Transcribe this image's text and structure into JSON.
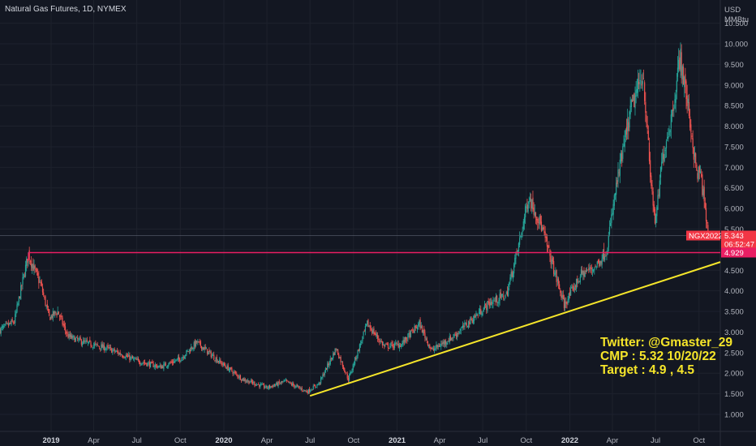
{
  "chart_data": {
    "type": "candlestick",
    "title": "Natural Gas Futures, 1D, NYMEX",
    "currency": "USD",
    "unit": "MMBtu",
    "grid": true,
    "y_axis": {
      "position": "right",
      "ylim": [
        0.6,
        10.85
      ],
      "ticks": [
        "1.000",
        "1.500",
        "2.000",
        "2.500",
        "3.000",
        "3.500",
        "4.000",
        "4.500",
        "5.000",
        "5.500",
        "6.000",
        "6.500",
        "7.000",
        "7.500",
        "8.000",
        "8.500",
        "9.000",
        "9.500",
        "10.000",
        "10.500"
      ]
    },
    "x_axis": {
      "range": [
        "2018-09-15",
        "2022-11-15"
      ],
      "ticks": [
        {
          "label": "2019",
          "date": "2019-01-01",
          "bold": true
        },
        {
          "label": "Apr",
          "date": "2019-04-01"
        },
        {
          "label": "Jul",
          "date": "2019-07-01"
        },
        {
          "label": "Oct",
          "date": "2019-10-01"
        },
        {
          "label": "2020",
          "date": "2020-01-01",
          "bold": true
        },
        {
          "label": "Apr",
          "date": "2020-04-01"
        },
        {
          "label": "Jul",
          "date": "2020-07-01"
        },
        {
          "label": "Oct",
          "date": "2020-10-01"
        },
        {
          "label": "2021",
          "date": "2021-01-01",
          "bold": true
        },
        {
          "label": "Apr",
          "date": "2021-04-01"
        },
        {
          "label": "Jul",
          "date": "2021-07-01"
        },
        {
          "label": "Oct",
          "date": "2021-10-01"
        },
        {
          "label": "2022",
          "date": "2022-01-01",
          "bold": true
        },
        {
          "label": "Apr",
          "date": "2022-04-01"
        },
        {
          "label": "Jul",
          "date": "2022-07-01"
        },
        {
          "label": "Oct",
          "date": "2022-10-01"
        }
      ]
    },
    "price_path": [
      [
        "2018-09-15",
        3.05
      ],
      [
        "2018-10-15",
        3.25
      ],
      [
        "2018-11-14",
        4.9
      ],
      [
        "2018-11-25",
        4.55
      ],
      [
        "2018-12-10",
        4.15
      ],
      [
        "2018-12-28",
        3.35
      ],
      [
        "2019-01-15",
        3.5
      ],
      [
        "2019-02-05",
        2.9
      ],
      [
        "2019-03-10",
        2.75
      ],
      [
        "2019-05-01",
        2.6
      ],
      [
        "2019-07-01",
        2.3
      ],
      [
        "2019-08-20",
        2.15
      ],
      [
        "2019-10-01",
        2.35
      ],
      [
        "2019-11-05",
        2.75
      ],
      [
        "2019-12-20",
        2.3
      ],
      [
        "2020-02-10",
        1.85
      ],
      [
        "2020-04-01",
        1.65
      ],
      [
        "2020-05-10",
        1.8
      ],
      [
        "2020-06-25",
        1.55
      ],
      [
        "2020-07-20",
        1.75
      ],
      [
        "2020-08-25",
        2.6
      ],
      [
        "2020-09-20",
        1.85
      ],
      [
        "2020-10-30",
        3.2
      ],
      [
        "2020-12-05",
        2.65
      ],
      [
        "2021-01-10",
        2.7
      ],
      [
        "2021-02-17",
        3.2
      ],
      [
        "2021-03-15",
        2.55
      ],
      [
        "2021-05-01",
        2.9
      ],
      [
        "2021-07-15",
        3.7
      ],
      [
        "2021-08-20",
        3.9
      ],
      [
        "2021-09-15",
        5.1
      ],
      [
        "2021-10-06",
        6.3
      ],
      [
        "2021-11-01",
        5.6
      ],
      [
        "2021-12-20",
        3.65
      ],
      [
        "2022-01-25",
        4.4
      ],
      [
        "2022-02-25",
        4.6
      ],
      [
        "2022-03-20",
        5.0
      ],
      [
        "2022-04-10",
        6.6
      ],
      [
        "2022-05-10",
        8.4
      ],
      [
        "2022-06-05",
        9.3
      ],
      [
        "2022-06-20",
        6.8
      ],
      [
        "2022-07-01",
        5.6
      ],
      [
        "2022-07-15",
        7.2
      ],
      [
        "2022-08-05",
        8.3
      ],
      [
        "2022-08-22",
        9.7
      ],
      [
        "2022-09-10",
        8.3
      ],
      [
        "2022-09-25",
        6.9
      ],
      [
        "2022-10-05",
        6.8
      ],
      [
        "2022-10-20",
        5.34
      ]
    ]
  },
  "title": "Natural Gas Futures, 1D, NYMEX",
  "axis_unit": {
    "currency": "USD",
    "unit": "MMBtu"
  },
  "resistance": {
    "value": 4.929,
    "label": "4.929",
    "color": "#e91e63"
  },
  "current_price": {
    "symbol": "NGX2022",
    "price": "5.343",
    "countdown": "06:52:47",
    "value": 5.343,
    "color": "#f23645"
  },
  "trendline": {
    "color": "#f5e52a",
    "from": {
      "date": "2020-07-01",
      "price": 1.45
    },
    "to": {
      "date": "2022-11-15",
      "price": 4.7
    }
  },
  "annotation": {
    "line1": "Twitter: @Gmaster_29",
    "line2": "CMP : 5.32  10/20/22",
    "line3": "Target : 4.9 , 4.5"
  },
  "colors": {
    "background": "#131722",
    "up": "#26a69a",
    "down": "#ef5350",
    "grid": "#1e222d"
  }
}
